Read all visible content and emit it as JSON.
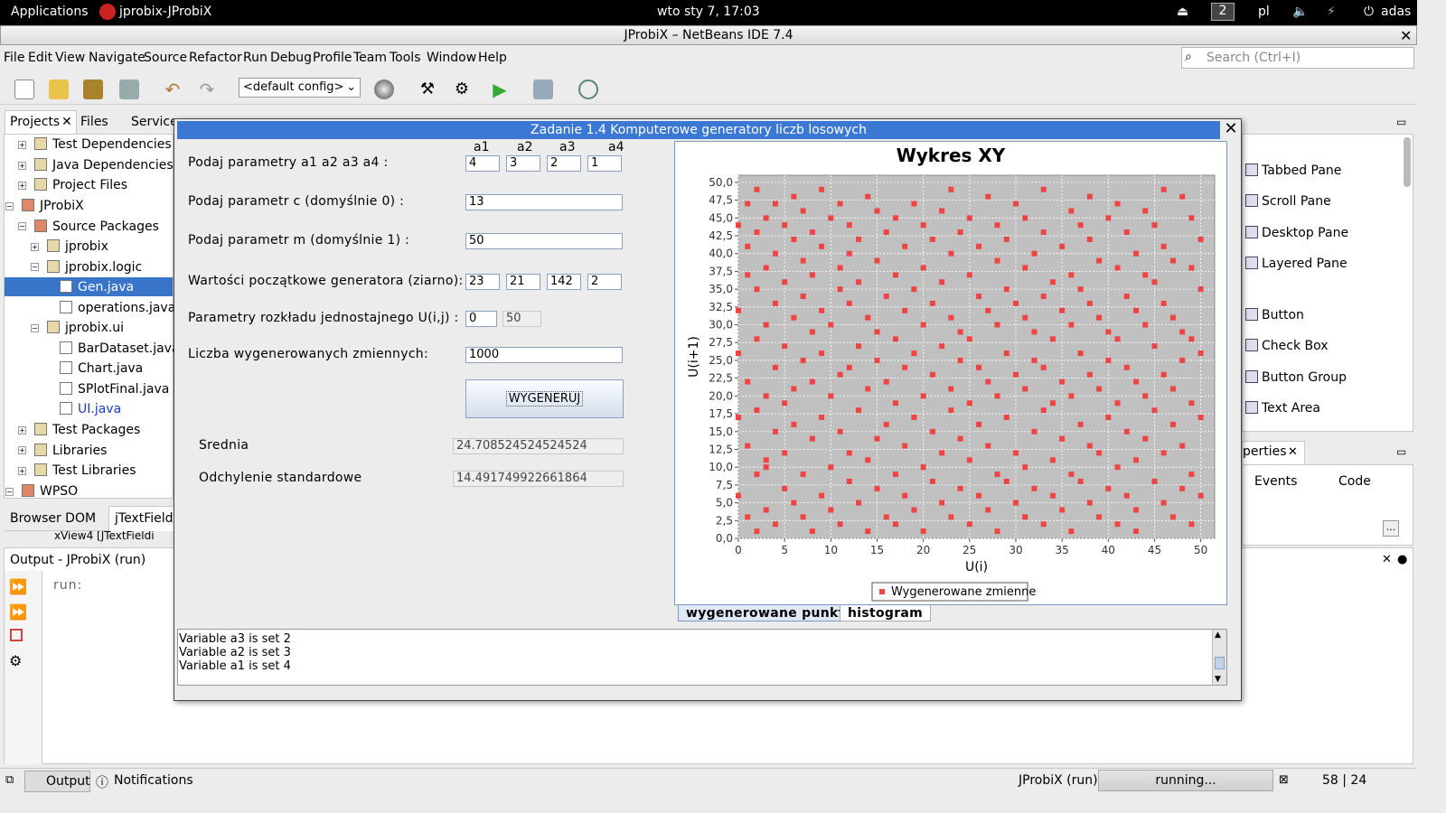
{
  "topbar": {
    "applications": "Applications",
    "window": "jprobix-JProbiX",
    "clock": "wto sty  7, 17:03",
    "workspace": "2",
    "lang": "pl",
    "user": "adas"
  },
  "window_title": "JProbiX – NetBeans IDE 7.4",
  "menu": [
    "File",
    "Edit",
    "View",
    "Navigate",
    "Source",
    "Refactor",
    "Run",
    "Debug",
    "Profile",
    "Team",
    "Tools",
    "Window",
    "Help"
  ],
  "search_placeholder": "Search (Ctrl+I)",
  "config": "<default config>",
  "left_tabs": {
    "projects": "Projects",
    "files": "Files",
    "services": "Services"
  },
  "tree": [
    "Test Dependencies",
    "Java Dependencies",
    "Project Files",
    "JProbiX",
    "Source Packages",
    "jprobix",
    "jprobix.logic",
    "Gen.java",
    "operations.java",
    "jprobix.ui",
    "BarDataset.java",
    "Chart.java",
    "SPlotFinal.java",
    "UI.java",
    "Test Packages",
    "Libraries",
    "Test Libraries",
    "WPSO"
  ],
  "nav_tabs": {
    "browser_dom": "Browser DOM",
    "jtextfield": "jTextFieldC",
    "nav_row": "xView4 [JTextFieldi"
  },
  "palette": [
    "Tabbed Pane",
    "Scroll Pane",
    "Desktop Pane",
    "Layered Pane",
    "Button",
    "Check Box",
    "Button Group",
    "Text Area"
  ],
  "properties": {
    "title": "perties",
    "events": "Events",
    "code": "Code",
    "ellipsis": "..."
  },
  "output": {
    "title": "Output - JProbiX (run)",
    "run": "run:"
  },
  "statusbar": {
    "output": "Output",
    "notifications": "Notifications",
    "project": "JProbiX (run)",
    "status": "running...",
    "position": "58 | 24"
  },
  "dialog": {
    "title": "Zadanie 1.4 Komputerowe generatory liczb losowych",
    "col_headers": [
      "a1",
      "a2",
      "a3",
      "a4"
    ],
    "lbl_params": "Podaj parametry a1 a2 a3 a4 :",
    "params": [
      "4",
      "3",
      "2",
      "1"
    ],
    "lbl_c": "Podaj parametr c (domyślnie 0) :",
    "c": "13",
    "lbl_m": "Podaj parametr m (domyślnie 1) :",
    "m": "50",
    "lbl_seed": "Wartości początkowe generatora (ziarno):",
    "seeds": [
      "23",
      "21",
      "142",
      "2"
    ],
    "lbl_uniform": "Parametry rozkładu jednostajnego U(i,j) :",
    "uniform": [
      "0",
      "50"
    ],
    "lbl_count": "Liczba wygenerowanych zmiennych:",
    "count": "1000",
    "button": "WYGENERUJ",
    "lbl_mean": "Srednia",
    "mean": "24.708524524524524",
    "lbl_std": "Odchylenie standardowe",
    "std": "14.491749922661864",
    "tabs": [
      "wygenerowane punkty",
      "histogram"
    ],
    "log": [
      "Variable a3 is set 2",
      "Variable a2 is set 3",
      "Variable a1 is set 4"
    ]
  },
  "chart_data": {
    "type": "scatter",
    "title": "Wykres XY",
    "xlabel": "U(i)",
    "ylabel": "U(i+1)",
    "xlim": [
      0,
      51.5
    ],
    "ylim": [
      0,
      51
    ],
    "x_ticks": [
      "0",
      "5",
      "10",
      "15",
      "20",
      "25",
      "30",
      "35",
      "40",
      "45",
      "50"
    ],
    "y_ticks": [
      "0,0",
      "2,5",
      "5,0",
      "7,5",
      "10,0",
      "12,5",
      "15,0",
      "17,5",
      "20,0",
      "22,5",
      "25,0",
      "27,5",
      "30,0",
      "32,5",
      "35,0",
      "37,5",
      "40,0",
      "42,5",
      "45,0",
      "47,5",
      "50,0"
    ],
    "legend": "Wygenerowane zmienne",
    "grid": true,
    "color": "#ee4444",
    "background": "#c0c0c0",
    "note": "approx. 1000 points, integer-valued pairs (U(i),U(i+1)) on 0..50 grid; sample listed",
    "x": [
      0,
      0,
      0,
      0,
      0,
      1,
      1,
      1,
      1,
      1,
      1,
      2,
      2,
      2,
      2,
      2,
      2,
      2,
      3,
      3,
      3,
      3,
      3,
      3,
      3,
      4,
      4,
      4,
      4,
      4,
      4,
      5,
      5,
      5,
      5,
      5,
      5,
      6,
      6,
      6,
      6,
      6,
      6,
      7,
      7,
      7,
      7,
      7,
      7,
      8,
      8,
      8,
      8,
      8,
      8,
      9,
      9,
      9,
      9,
      9,
      9,
      10,
      10,
      10,
      10,
      10,
      11,
      11,
      11,
      11,
      11,
      11,
      12,
      12,
      12,
      12,
      12,
      12,
      13,
      13,
      13,
      13,
      13,
      14,
      14,
      14,
      14,
      14,
      15,
      15,
      15,
      15,
      15,
      15,
      16,
      16,
      16,
      16,
      16,
      17,
      17,
      17,
      17,
      17,
      17,
      18,
      18,
      18,
      18,
      18,
      19,
      19,
      19,
      19,
      19,
      20,
      20,
      20,
      20,
      20,
      20,
      21,
      21,
      21,
      21,
      21,
      22,
      22,
      22,
      22,
      22,
      23,
      23,
      23,
      23,
      23,
      23,
      24,
      24,
      24,
      24,
      24,
      25,
      25,
      25,
      25,
      25,
      25,
      26,
      26,
      26,
      26,
      26,
      27,
      27,
      27,
      27,
      27,
      28,
      28,
      28,
      28,
      28,
      28,
      29,
      29,
      29,
      29,
      29,
      30,
      30,
      30,
      30,
      30,
      31,
      31,
      31,
      31,
      31,
      31,
      32,
      32,
      32,
      32,
      32,
      33,
      33,
      33,
      33,
      33,
      33,
      34,
      34,
      34,
      34,
      34,
      35,
      35,
      35,
      35,
      35,
      36,
      36,
      36,
      36,
      36,
      36,
      37,
      37,
      37,
      37,
      37,
      38,
      38,
      38,
      38,
      38,
      38,
      39,
      39,
      39,
      39,
      39,
      40,
      40,
      40,
      40,
      40,
      41,
      41,
      41,
      41,
      41,
      41,
      42,
      42,
      42,
      42,
      42,
      43,
      43,
      43,
      43,
      43,
      43,
      44,
      44,
      44,
      44,
      44,
      45,
      45,
      45,
      45,
      45,
      46,
      46,
      46,
      46,
      46,
      46,
      47,
      47,
      47,
      47,
      47,
      48,
      48,
      48,
      48,
      48,
      49,
      49,
      49,
      49,
      49,
      49,
      50,
      50,
      50,
      50,
      50
    ],
    "y": [
      6,
      17,
      26,
      32,
      44,
      3,
      13,
      22,
      37,
      41,
      47,
      1,
      9,
      18,
      28,
      35,
      43,
      49,
      4,
      11,
      20,
      30,
      38,
      45,
      10,
      2,
      15,
      24,
      33,
      40,
      47,
      7,
      19,
      27,
      36,
      44,
      12,
      5,
      16,
      21,
      31,
      42,
      48,
      3,
      9,
      25,
      34,
      39,
      46,
      1,
      14,
      22,
      29,
      37,
      43,
      6,
      17,
      26,
      32,
      41,
      49,
      4,
      10,
      20,
      30,
      45,
      2,
      15,
      23,
      35,
      38,
      47,
      8,
      12,
      24,
      33,
      40,
      44,
      5,
      18,
      27,
      36,
      42,
      1,
      11,
      21,
      31,
      48,
      7,
      14,
      25,
      29,
      39,
      46,
      3,
      16,
      22,
      34,
      43,
      2,
      9,
      19,
      28,
      37,
      45,
      6,
      13,
      24,
      32,
      41,
      4,
      17,
      26,
      35,
      47,
      1,
      10,
      20,
      30,
      38,
      44,
      8,
      15,
      23,
      33,
      42,
      5,
      12,
      27,
      36,
      46,
      3,
      18,
      21,
      31,
      40,
      49,
      7,
      14,
      25,
      29,
      43,
      2,
      11,
      19,
      28,
      37,
      45,
      6,
      16,
      24,
      34,
      41,
      4,
      13,
      22,
      32,
      48,
      1,
      9,
      20,
      30,
      39,
      44,
      8,
      17,
      26,
      35,
      42,
      5,
      12,
      23,
      33,
      47,
      3,
      10,
      21,
      31,
      38,
      45,
      7,
      15,
      25,
      29,
      40,
      2,
      18,
      24,
      34,
      43,
      49,
      6,
      11,
      19,
      28,
      36,
      4,
      14,
      22,
      32,
      41,
      1,
      9,
      20,
      30,
      37,
      46,
      8,
      16,
      26,
      35,
      44,
      5,
      13,
      23,
      33,
      42,
      48,
      3,
      12,
      21,
      31,
      39,
      7,
      17,
      25,
      29,
      45,
      2,
      10,
      19,
      28,
      38,
      47,
      6,
      15,
      24,
      34,
      43,
      4,
      11,
      22,
      32,
      40,
      1,
      14,
      20,
      30,
      37,
      46,
      8,
      18,
      27,
      36,
      44,
      5,
      12,
      23,
      33,
      41,
      49,
      3,
      16,
      21,
      31,
      39,
      7,
      13,
      25,
      29,
      48,
      2,
      9,
      19,
      28,
      38,
      45,
      6,
      17,
      26,
      35,
      42
    ]
  }
}
